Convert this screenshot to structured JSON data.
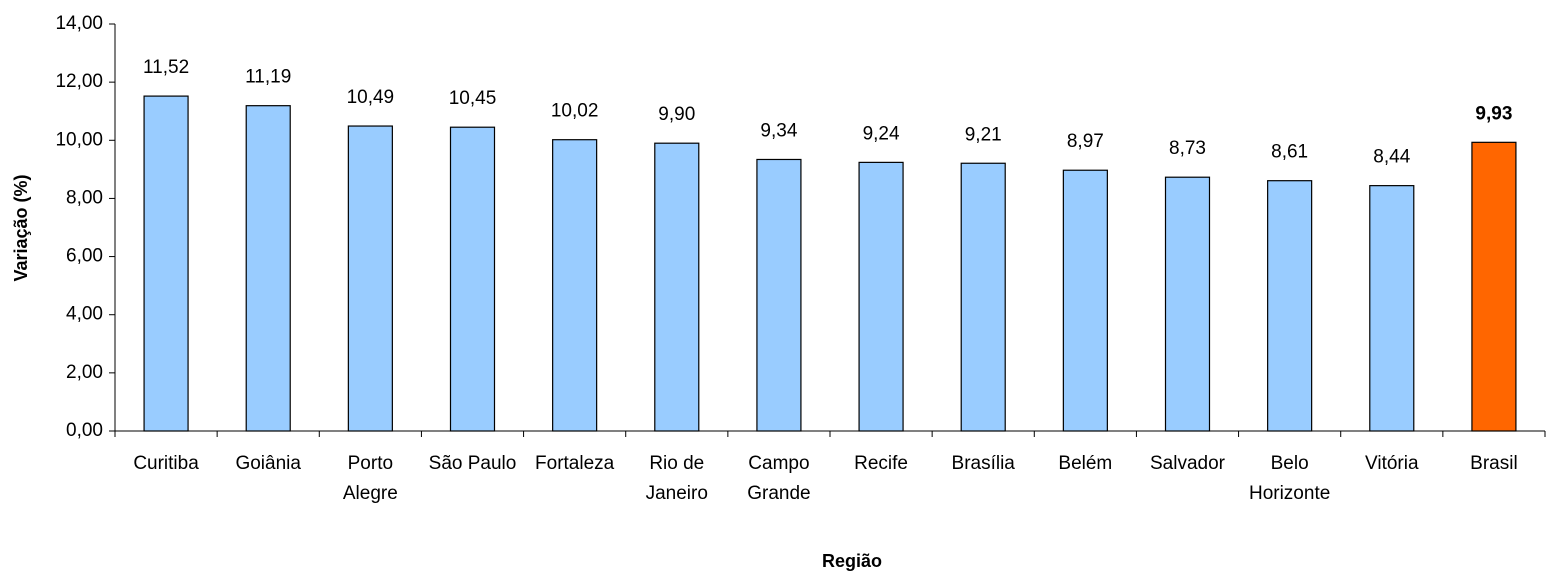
{
  "chart_data": {
    "type": "bar",
    "y_label": "Variação (%)",
    "x_label": "Região",
    "categories": [
      "Curitiba",
      "Goiânia",
      "Porto Alegre",
      "São Paulo",
      "Fortaleza",
      "Rio de Janeiro",
      "Campo Grande",
      "Recife",
      "Brasília",
      "Belém",
      "Salvador",
      "Belo Horizonte",
      "Vitória",
      "Brasil"
    ],
    "values": [
      11.52,
      11.19,
      10.49,
      10.45,
      10.02,
      9.9,
      9.34,
      9.24,
      9.21,
      8.97,
      8.73,
      8.61,
      8.44,
      9.93
    ],
    "value_labels": [
      "11,52",
      "11,19",
      "10,49",
      "10,45",
      "10,02",
      "9,90",
      "9,34",
      "9,24",
      "9,21",
      "8,97",
      "8,73",
      "8,61",
      "8,44",
      "9,93"
    ],
    "colors": [
      "#99ccff",
      "#99ccff",
      "#99ccff",
      "#99ccff",
      "#99ccff",
      "#99ccff",
      "#99ccff",
      "#99ccff",
      "#99ccff",
      "#99ccff",
      "#99ccff",
      "#99ccff",
      "#99ccff",
      "#ff6600"
    ],
    "ylim": [
      0,
      14
    ],
    "yticks": [
      {
        "value": 0,
        "label": "0,00"
      },
      {
        "value": 2,
        "label": "2,00"
      },
      {
        "value": 4,
        "label": "4,00"
      },
      {
        "value": 6,
        "label": "6,00"
      },
      {
        "value": 8,
        "label": "8,00"
      },
      {
        "value": 10,
        "label": "10,00"
      },
      {
        "value": 12,
        "label": "12,00"
      },
      {
        "value": 14,
        "label": "14,00"
      }
    ]
  }
}
